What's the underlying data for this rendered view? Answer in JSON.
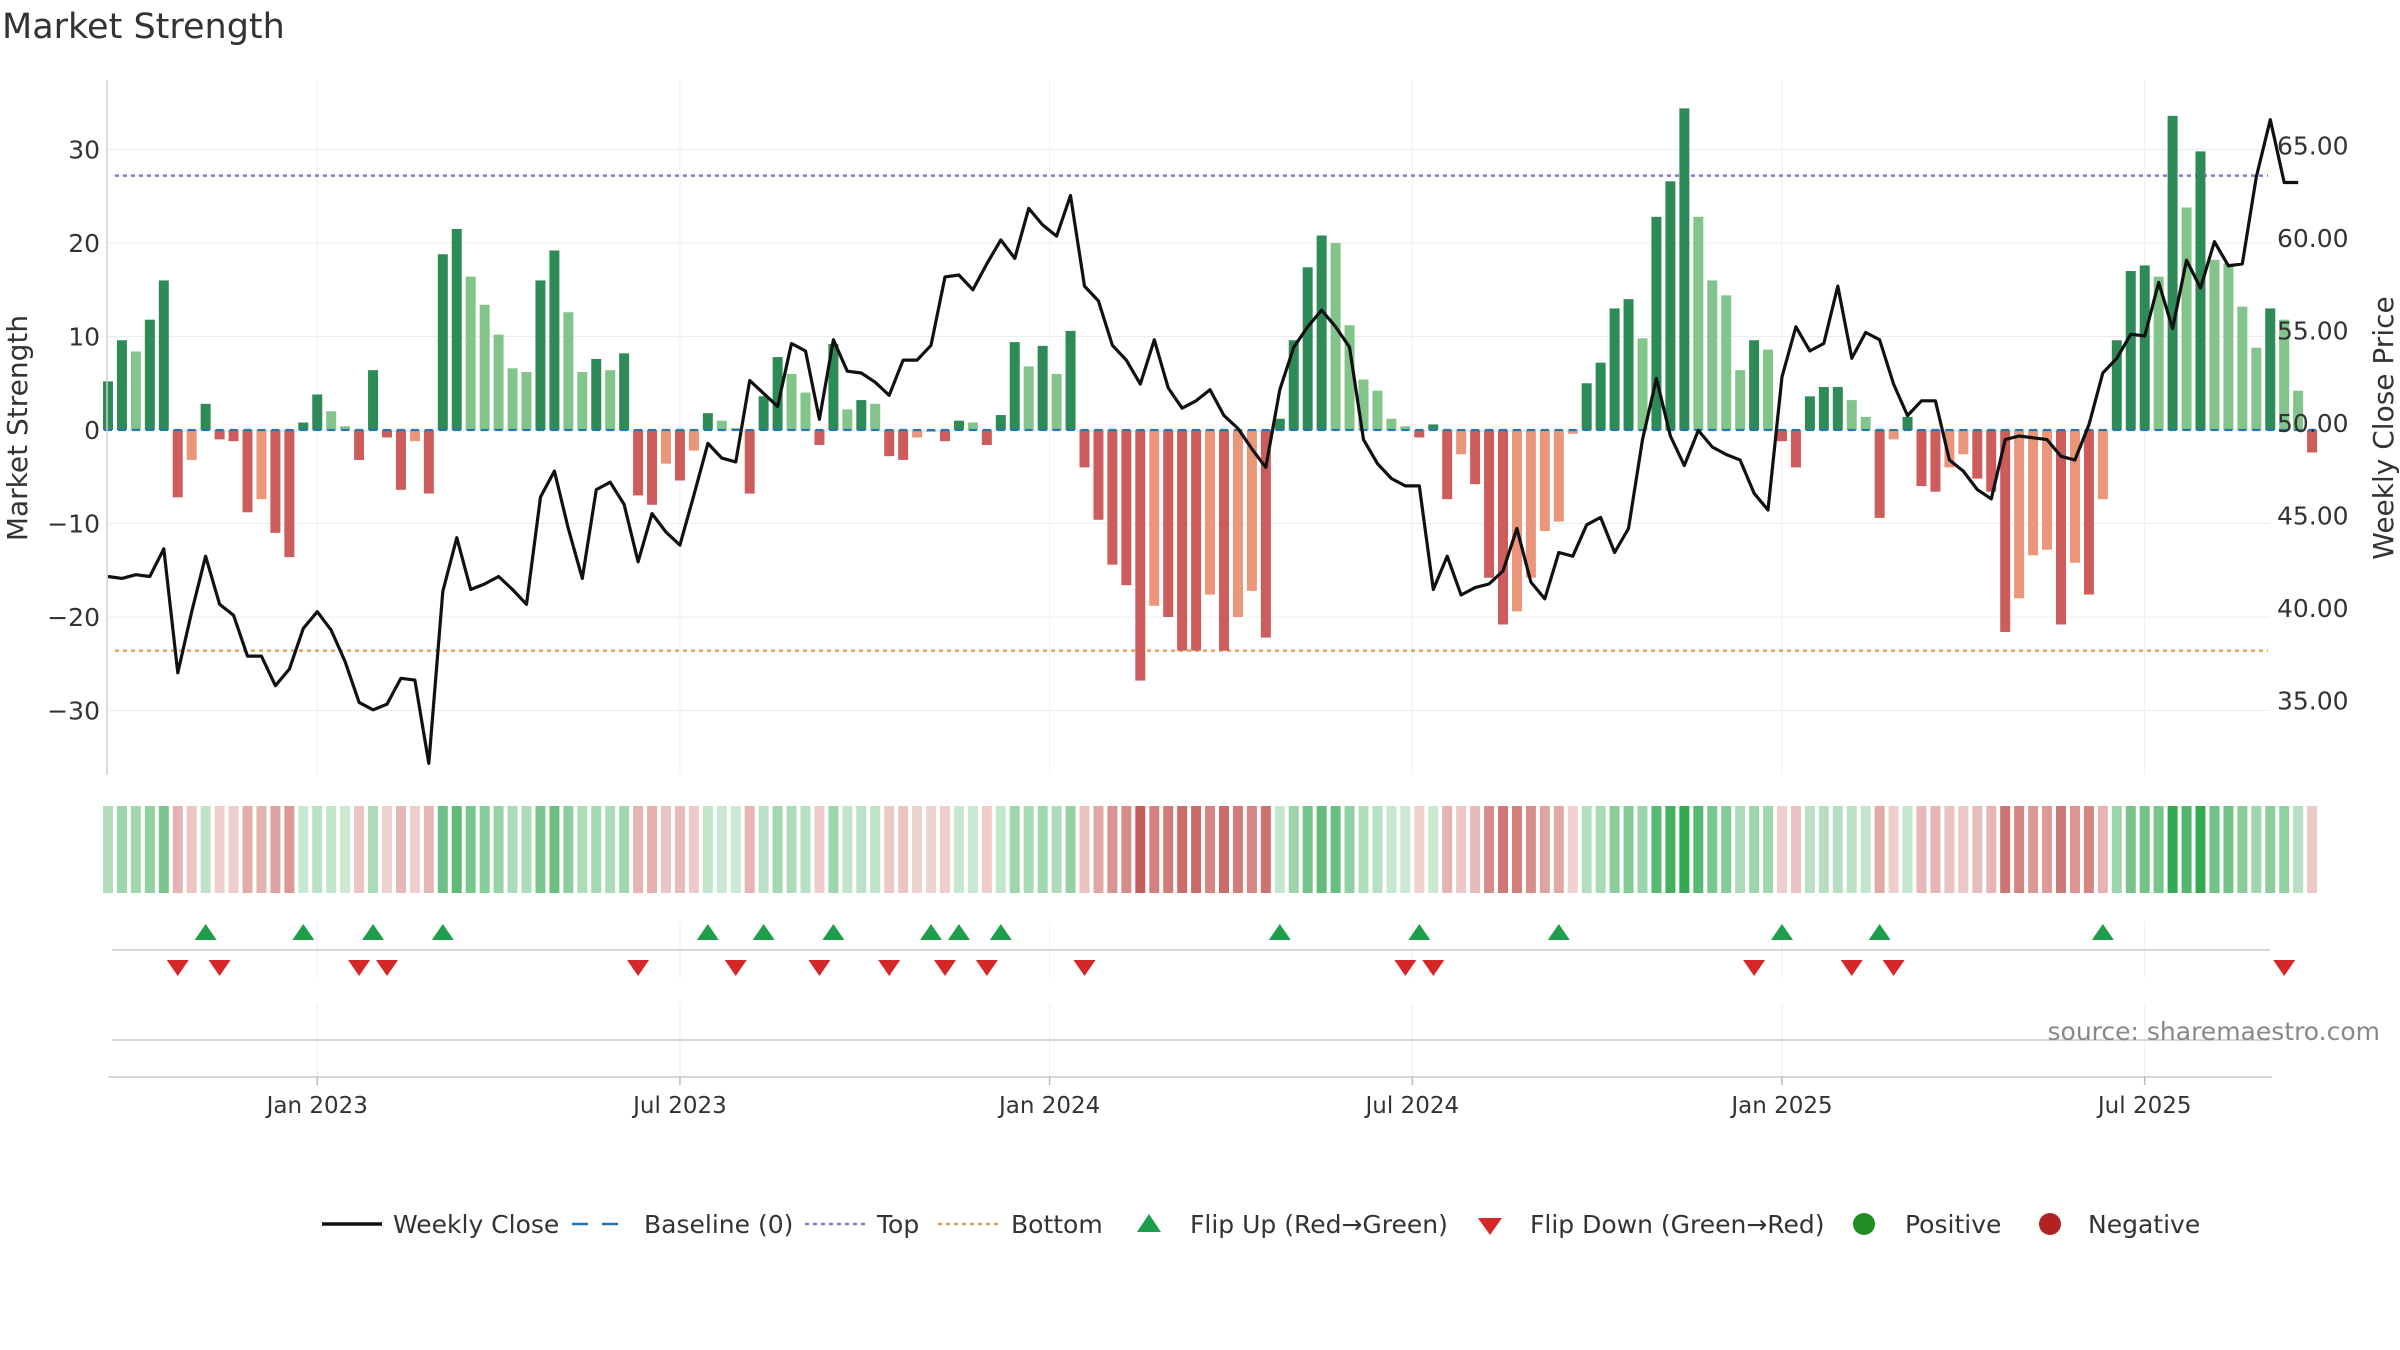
{
  "chart_data": {
    "type": "bar",
    "title": "Market Strength",
    "ylabel": "Market Strength",
    "y2label": "Weekly Close Price",
    "source": "source: sharemaestro.com",
    "ylim": [
      -37,
      37
    ],
    "y_ticks": [
      {
        "v": 30,
        "label": "30"
      },
      {
        "v": 20,
        "label": "20"
      },
      {
        "v": 10,
        "label": "10"
      },
      {
        "v": 0,
        "label": "0"
      },
      {
        "v": -10,
        "label": "−10"
      },
      {
        "v": -20,
        "label": "−20"
      },
      {
        "v": -30,
        "label": "−30"
      }
    ],
    "y2lim": [
      30.25,
      70.25
    ],
    "y2_ticks": [
      {
        "v": 65,
        "label": "65.00"
      },
      {
        "v": 60,
        "label": "60.00"
      },
      {
        "v": 55,
        "label": "55.00"
      },
      {
        "v": 50,
        "label": "50.00"
      },
      {
        "v": 45,
        "label": "45.00"
      },
      {
        "v": 40,
        "label": "40.00"
      },
      {
        "v": 35,
        "label": "35.00"
      }
    ],
    "top_level": 27.2,
    "bottom_level": -23.6,
    "x_ticks": [
      {
        "week": 15,
        "label": "Jan 2023"
      },
      {
        "week": 41,
        "label": "Jul 2023"
      },
      {
        "week": 67.5,
        "label": "Jan 2024"
      },
      {
        "week": 93.5,
        "label": "Jul 2024"
      },
      {
        "week": 120,
        "label": "Jan 2025"
      },
      {
        "week": 146,
        "label": "Jul 2025"
      }
    ],
    "weeks": 157,
    "strength": [
      5.2,
      9.6,
      8.4,
      11.8,
      16.0,
      -7.2,
      -3.2,
      2.8,
      -1.0,
      -1.2,
      -8.8,
      -7.4,
      -11.0,
      -13.6,
      0.8,
      3.8,
      2.0,
      0.4,
      -3.2,
      6.4,
      -0.8,
      -6.4,
      -1.2,
      -6.8,
      18.8,
      21.5,
      16.4,
      13.4,
      10.2,
      6.6,
      6.2,
      16.0,
      19.2,
      12.6,
      6.2,
      7.6,
      6.4,
      8.2,
      -7.0,
      -8.0,
      -3.6,
      -5.4,
      -2.2,
      1.8,
      1.0,
      0.2,
      -6.8,
      3.6,
      7.8,
      6.0,
      4.0,
      -1.6,
      9.2,
      2.2,
      3.2,
      2.8,
      -2.8,
      -3.2,
      -0.8,
      -0.2,
      -1.2,
      1.0,
      0.8,
      -1.6,
      1.6,
      9.4,
      6.8,
      9.0,
      6.0,
      10.6,
      -4.0,
      -9.6,
      -14.4,
      -16.6,
      -26.8,
      -18.8,
      -20.0,
      -23.6,
      -23.6,
      -17.6,
      -23.6,
      -20.0,
      -17.2,
      -22.2,
      1.2,
      9.6,
      17.4,
      20.8,
      20.0,
      11.2,
      5.4,
      4.2,
      1.2,
      0.4,
      -0.8,
      0.6,
      -7.4,
      -2.6,
      -5.8,
      -15.8,
      -20.8,
      -19.4,
      -15.8,
      -10.8,
      -9.8,
      -0.4,
      5.0,
      7.2,
      13.0,
      14.0,
      9.8,
      22.8,
      26.6,
      34.4,
      22.8,
      16.0,
      14.4,
      6.4,
      9.6,
      8.6,
      -1.2,
      -4.0,
      3.6,
      4.6,
      4.6,
      3.2,
      1.4,
      -9.4,
      -1.0,
      1.4,
      -6.0,
      -6.6,
      -4.0,
      -2.6,
      -5.2,
      -6.6,
      -21.6,
      -18.0,
      -13.4,
      -12.8,
      -20.8,
      -14.2,
      -17.6,
      -7.4,
      9.6,
      17.0,
      17.6,
      16.4,
      33.6,
      23.8,
      29.8,
      18.2,
      17.8,
      13.2,
      8.8,
      13.0,
      11.8,
      4.2,
      -2.4
    ],
    "close": [
      41.7,
      41.6,
      41.8,
      41.7,
      43.2,
      36.5,
      39.8,
      42.8,
      40.2,
      39.6,
      37.4,
      37.4,
      35.8,
      36.7,
      38.9,
      39.8,
      38.8,
      37.1,
      34.9,
      34.5,
      34.8,
      36.2,
      36.1,
      31.6,
      40.9,
      43.8,
      41.0,
      41.3,
      41.7,
      41.0,
      40.2,
      46.0,
      47.4,
      44.3,
      41.6,
      46.4,
      46.8,
      45.6,
      42.5,
      45.1,
      44.1,
      43.4,
      46.1,
      48.9,
      48.1,
      47.9,
      52.3,
      51.6,
      50.9,
      54.3,
      53.9,
      50.2,
      54.5,
      52.8,
      52.7,
      52.2,
      51.5,
      53.4,
      53.4,
      54.2,
      57.9,
      58.0,
      57.2,
      58.6,
      59.9,
      58.9,
      61.6,
      60.7,
      60.1,
      62.3,
      57.4,
      56.6,
      54.2,
      53.4,
      52.1,
      54.5,
      51.9,
      50.8,
      51.2,
      51.8,
      50.4,
      49.7,
      48.6,
      47.6,
      51.8,
      54.1,
      55.2,
      56.1,
      55.2,
      54.1,
      49.1,
      47.8,
      47.0,
      46.6,
      46.6,
      41.0,
      42.8,
      40.7,
      41.1,
      41.3,
      42.0,
      44.3,
      41.4,
      40.5,
      43.0,
      42.8,
      44.5,
      44.9,
      43.0,
      44.3,
      49.1,
      52.4,
      49.3,
      47.7,
      49.6,
      48.7,
      48.3,
      48.0,
      46.2,
      45.3,
      52.5,
      55.2,
      53.9,
      54.3,
      57.4,
      53.5,
      54.9,
      54.5,
      52.1,
      50.4,
      51.2,
      51.2,
      48.0,
      47.4,
      46.4,
      45.9,
      49.1,
      49.3,
      49.2,
      49.1,
      48.2,
      48.0,
      49.9,
      52.7,
      53.5,
      54.8,
      54.7,
      57.6,
      55.1,
      58.8,
      57.3,
      59.8,
      58.5,
      58.6,
      63.3,
      66.4,
      63.0,
      63.0
    ],
    "flip_up": [
      7,
      14,
      19,
      24,
      43,
      47,
      52,
      59,
      61,
      64,
      84,
      94,
      104,
      120,
      127,
      143
    ],
    "flip_down": [
      5,
      8,
      18,
      20,
      38,
      45,
      51,
      56,
      60,
      63,
      70,
      93,
      95,
      118,
      125,
      128,
      156
    ],
    "legend": [
      {
        "key": "close",
        "label": "Weekly Close"
      },
      {
        "key": "baseline",
        "label": "Baseline (0)"
      },
      {
        "key": "top",
        "label": "Top"
      },
      {
        "key": "bottom",
        "label": "Bottom"
      },
      {
        "key": "flipup",
        "label": "Flip Up (Red→Green)"
      },
      {
        "key": "flipdown",
        "label": "Flip Down (Green→Red)"
      },
      {
        "key": "positive",
        "label": "Positive"
      },
      {
        "key": "negative",
        "label": "Negative"
      }
    ]
  },
  "colors": {
    "pos_dark": "#2e8b57",
    "pos_light": "#82c48a",
    "neg_dark": "#cd5c5c",
    "neg_light": "#e9967a",
    "close": "#111111",
    "baseline": "#1f77b4",
    "top": "#9370db",
    "bottom": "#e0a060",
    "flip_up": "#1e9e4a",
    "flip_down": "#d62728",
    "positive": "#228b22",
    "negative": "#b22222"
  }
}
